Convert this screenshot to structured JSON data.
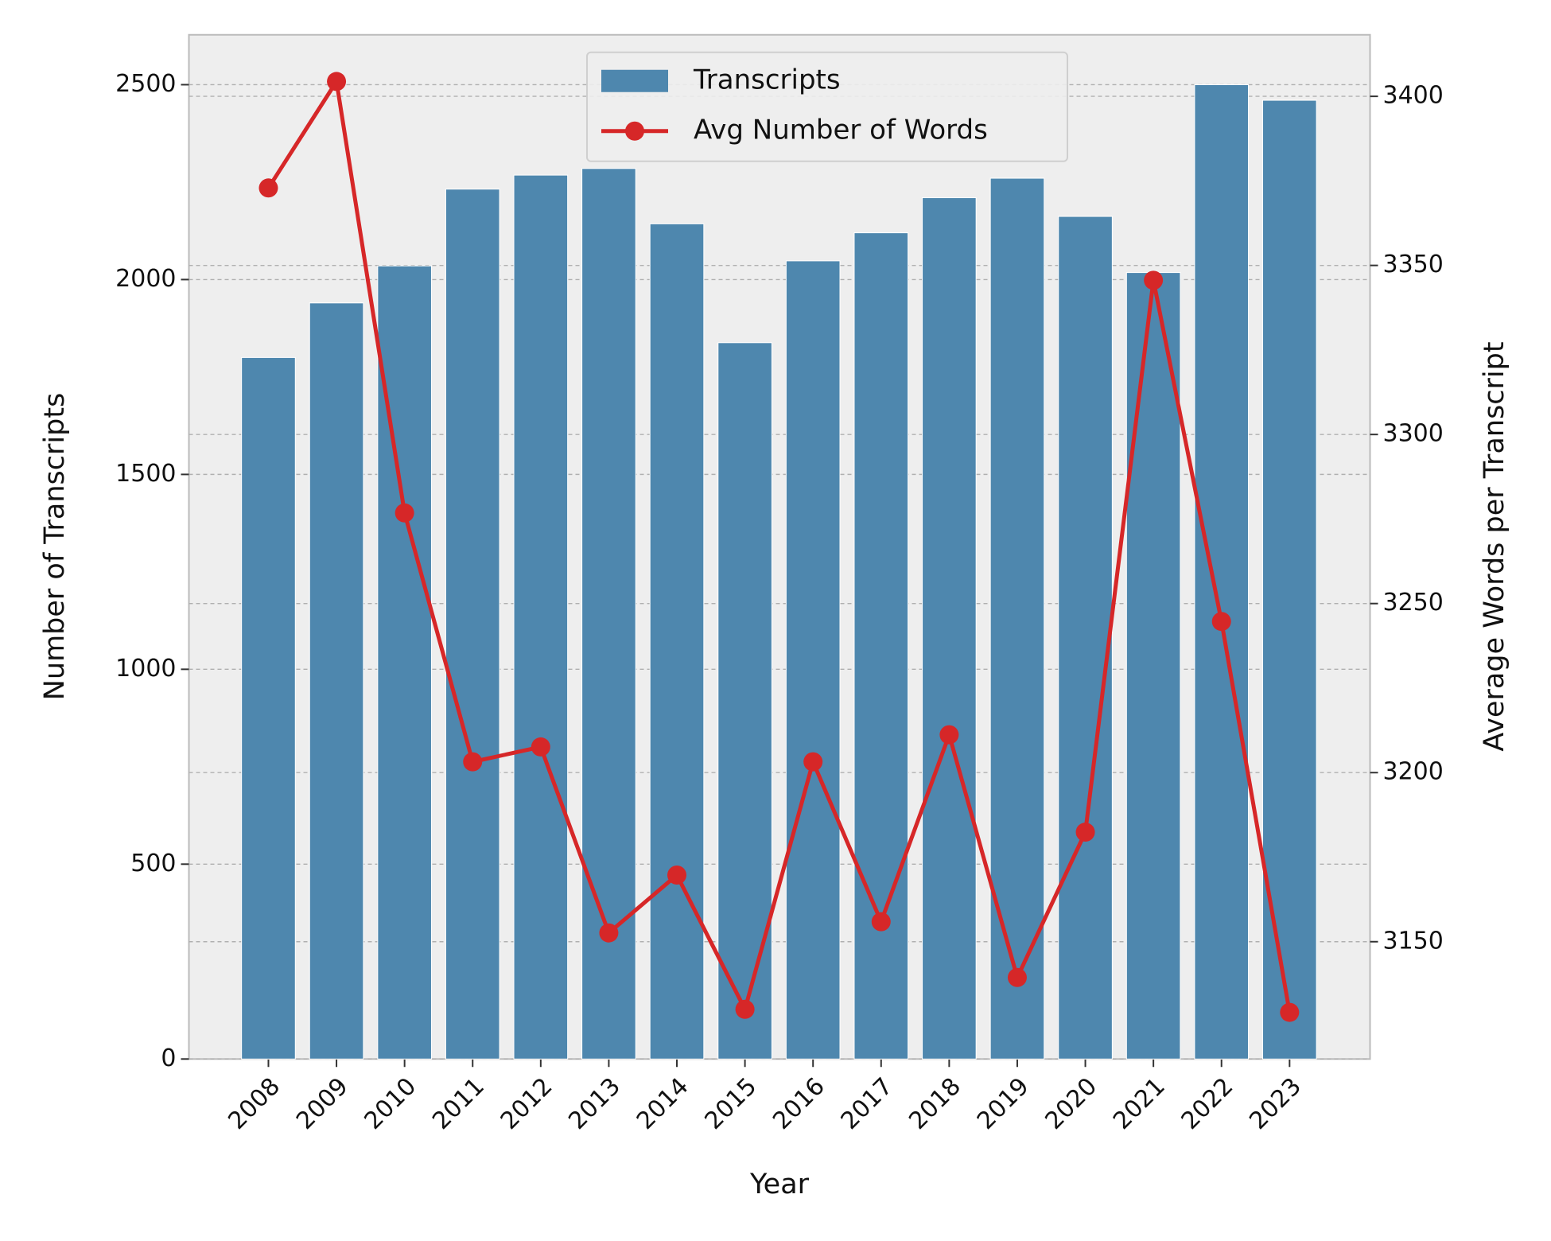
{
  "chart_data": {
    "type": "bar-line",
    "x_label": "Year",
    "y_label": "Number of Transcripts",
    "y2_label": "Average Words per Transcript",
    "categories": [
      "2008",
      "2009",
      "2010",
      "2011",
      "2012",
      "2013",
      "2014",
      "2015",
      "2016",
      "2017",
      "2018",
      "2019",
      "2020",
      "2021",
      "2022",
      "2023"
    ],
    "series": [
      {
        "name": "Transcripts",
        "type": "bar",
        "color": "#4e87ae",
        "axis": "y",
        "values": [
          1800,
          1940,
          2035,
          2232,
          2268,
          2285,
          2143,
          1838,
          2048,
          2120,
          2210,
          2260,
          2162,
          2018,
          2500,
          2460
        ]
      },
      {
        "name": "Avg Number of Words",
        "type": "line",
        "color": "#d62728",
        "axis": "y2",
        "values": [
          3372.9,
          3404.4,
          3276.8,
          3203.2,
          3207.6,
          3152.6,
          3169.7,
          3130.0,
          3203.2,
          3155.9,
          3211.2,
          3139.4,
          3182.4,
          3345.6,
          3244.7,
          3129.1
        ]
      }
    ],
    "ylim": [
      0,
      2628
    ],
    "yticks": [
      0,
      500,
      1000,
      1500,
      2000,
      2500
    ],
    "y2lim": [
      3115.3,
      3418.2
    ],
    "y2ticks": [
      3150,
      3200,
      3250,
      3300,
      3350,
      3400
    ],
    "grid": true,
    "legend": "upper center"
  }
}
